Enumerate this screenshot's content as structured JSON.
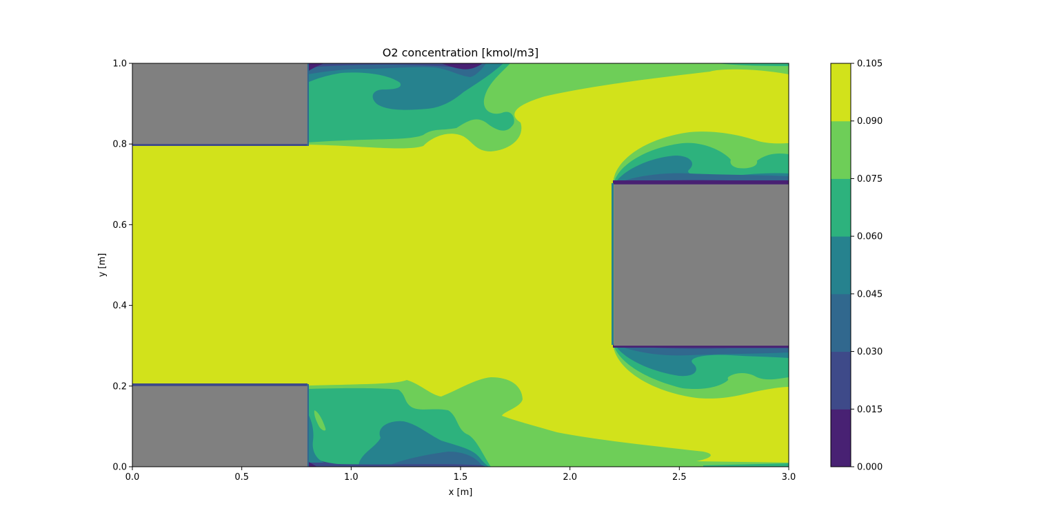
{
  "chart_data": {
    "type": "heatmap",
    "title": "O2 concentration [kmol/m3]",
    "xlabel": "x [m]",
    "ylabel": "y [m]",
    "xlim": [
      0.0,
      3.0
    ],
    "ylim": [
      0.0,
      1.0
    ],
    "x_ticks": [
      0.0,
      0.5,
      1.0,
      1.5,
      2.0,
      2.5,
      3.0
    ],
    "x_tick_labels": [
      "0.0",
      "0.5",
      "1.0",
      "1.5",
      "2.0",
      "2.5",
      "3.0"
    ],
    "y_ticks": [
      0.0,
      0.2,
      0.4,
      0.6,
      0.8,
      1.0
    ],
    "y_tick_labels": [
      "0.0",
      "0.2",
      "0.4",
      "0.6",
      "0.8",
      "1.0"
    ],
    "grid": false,
    "colorbar": {
      "levels": [
        0.0,
        0.015,
        0.03,
        0.045,
        0.06,
        0.075,
        0.09,
        0.105
      ],
      "tick_labels": [
        "0.000",
        "0.015",
        "0.030",
        "0.045",
        "0.060",
        "0.075",
        "0.090",
        "0.105"
      ],
      "colors": [
        "#482173",
        "#3e4a89",
        "#31688e",
        "#26828e",
        "#2db27d",
        "#6ece58",
        "#d2e21b"
      ]
    },
    "obstacle_color": "#808080",
    "obstacles": [
      {
        "x": [
          0.0,
          0.8
        ],
        "y": [
          0.8,
          1.0
        ]
      },
      {
        "x": [
          0.0,
          0.8
        ],
        "y": [
          0.0,
          0.2
        ]
      },
      {
        "x": [
          2.2,
          3.0
        ],
        "y": [
          0.3,
          0.7
        ]
      }
    ]
  }
}
